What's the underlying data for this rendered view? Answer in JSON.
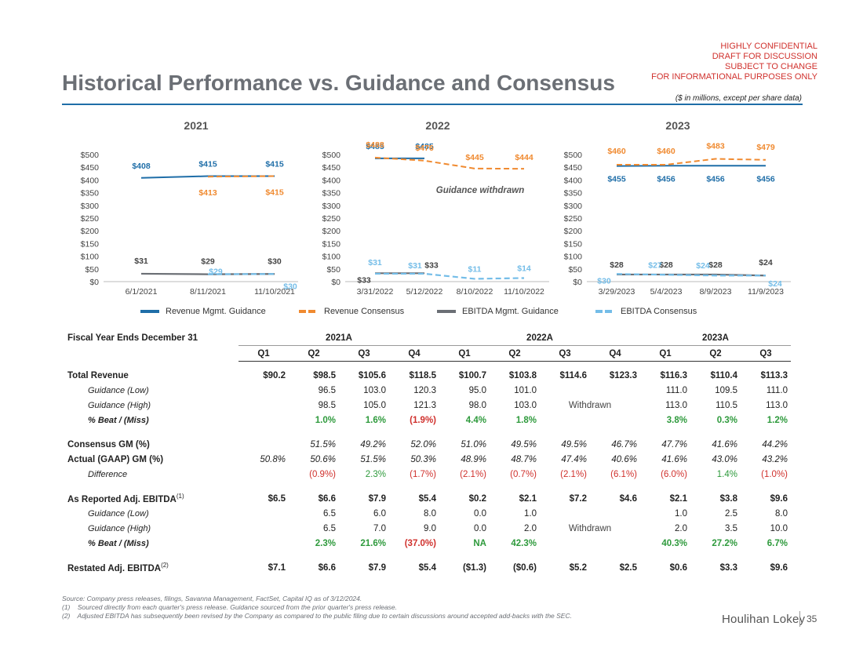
{
  "header": {
    "confidential_lines": [
      "HIGHLY CONFIDENTIAL",
      "DRAFT FOR DISCUSSION",
      "SUBJECT TO CHANGE",
      "FOR INFORMATIONAL PURPOSES ONLY"
    ],
    "title": "Historical Performance vs. Guidance and Consensus",
    "subtitle": "($ in millions, except per share data)"
  },
  "colors": {
    "revenue_guidance": "#1f6ea8",
    "revenue_consensus": "#f08a30",
    "ebitda_guidance": "#6b6f75",
    "ebitda_consensus": "#74bde8"
  },
  "chart_data": [
    {
      "type": "line",
      "title": "2021",
      "categories": [
        "6/1/2021",
        "8/11/2021",
        "11/10/2021"
      ],
      "ylim": [
        0,
        500
      ],
      "yticks": [
        "$0",
        "$50",
        "$100",
        "$150",
        "$200",
        "$250",
        "$300",
        "$350",
        "$400",
        "$450",
        "$500"
      ],
      "series": [
        {
          "name": "Revenue Mgmt. Guidance",
          "values": [
            408,
            415,
            415
          ],
          "labels": [
            "$408",
            "$415",
            "$415"
          ]
        },
        {
          "name": "Revenue Consensus",
          "values": [
            null,
            413,
            415
          ],
          "labels": [
            "",
            "$413",
            "$415"
          ]
        },
        {
          "name": "EBITDA Mgmt. Guidance",
          "values": [
            31,
            29,
            30
          ],
          "labels": [
            "$31",
            "$29",
            "$30"
          ]
        },
        {
          "name": "EBITDA Consensus",
          "values": [
            null,
            29,
            30
          ],
          "labels": [
            "",
            "$29",
            "$30"
          ]
        }
      ]
    },
    {
      "type": "line",
      "title": "2022",
      "categories": [
        "3/31/2022",
        "5/12/2022",
        "8/10/2022",
        "11/10/2022"
      ],
      "ylim": [
        0,
        500
      ],
      "yticks": [
        "$0",
        "$50",
        "$100",
        "$150",
        "$200",
        "$250",
        "$300",
        "$350",
        "$400",
        "$450",
        "$500"
      ],
      "annotation": "Guidance withdrawn",
      "series": [
        {
          "name": "Revenue Mgmt. Guidance",
          "values": [
            485,
            485,
            null,
            null
          ],
          "labels": [
            "$485",
            "$485",
            "",
            ""
          ]
        },
        {
          "name": "Revenue Consensus",
          "values": [
            488,
            476,
            445,
            444
          ],
          "labels": [
            "$488",
            "$476",
            "$445",
            "$444"
          ]
        },
        {
          "name": "EBITDA Mgmt. Guidance",
          "values": [
            33,
            33,
            null,
            null
          ],
          "labels": [
            "$33",
            "$33",
            "",
            ""
          ]
        },
        {
          "name": "EBITDA Consensus",
          "values": [
            31,
            31,
            11,
            14
          ],
          "labels": [
            "$31",
            "$31",
            "$11",
            "$14"
          ]
        }
      ]
    },
    {
      "type": "line",
      "title": "2023",
      "categories": [
        "3/29/2023",
        "5/4/2023",
        "8/9/2023",
        "11/9/2023"
      ],
      "ylim": [
        0,
        500
      ],
      "yticks": [
        "$0",
        "$50",
        "$100",
        "$150",
        "$200",
        "$250",
        "$300",
        "$350",
        "$400",
        "$450",
        "$500"
      ],
      "series": [
        {
          "name": "Revenue Mgmt. Guidance",
          "values": [
            455,
            456,
            456,
            456
          ],
          "labels": [
            "$455",
            "$456",
            "$456",
            "$456"
          ]
        },
        {
          "name": "Revenue Consensus",
          "values": [
            460,
            460,
            483,
            479
          ],
          "labels": [
            "$460",
            "$460",
            "$483",
            "$479"
          ]
        },
        {
          "name": "EBITDA Mgmt. Guidance",
          "values": [
            28,
            28,
            28,
            24
          ],
          "labels": [
            "$28",
            "$28",
            "$28",
            "$24"
          ]
        },
        {
          "name": "EBITDA Consensus",
          "values": [
            30,
            27,
            24,
            24
          ],
          "labels": [
            "$30",
            "$27",
            "$24",
            "$24"
          ]
        }
      ]
    }
  ],
  "legend": [
    "Revenue Mgmt. Guidance",
    "Revenue Consensus",
    "EBITDA Mgmt. Guidance",
    "EBITDA Consensus"
  ],
  "table": {
    "fiscal_label": "Fiscal Year Ends December 31",
    "years": [
      "2021A",
      "2022A",
      "2023A"
    ],
    "quarters": [
      "Q1",
      "Q2",
      "Q3",
      "Q4",
      "Q1",
      "Q2",
      "Q3",
      "Q4",
      "Q1",
      "Q2",
      "Q3"
    ],
    "withdrawn_label": "Withdrawn",
    "revenue": {
      "label": "Total Revenue",
      "values": [
        "$90.2",
        "$98.5",
        "$105.6",
        "$118.5",
        "$100.7",
        "$103.8",
        "$114.6",
        "$123.3",
        "$116.3",
        "$110.4",
        "$113.3"
      ],
      "guidance_low_label": "Guidance (Low)",
      "guidance_low": [
        "",
        "96.5",
        "103.0",
        "120.3",
        "95.0",
        "101.0",
        "",
        "",
        "111.0",
        "109.5",
        "111.0"
      ],
      "guidance_high_label": "Guidance (High)",
      "guidance_high": [
        "",
        "98.5",
        "105.0",
        "121.3",
        "98.0",
        "103.0",
        "",
        "",
        "113.0",
        "110.5",
        "113.0"
      ],
      "beat_label": "% Beat / (Miss)",
      "beat": [
        "",
        "1.0%",
        "1.6%",
        "(1.9%)",
        "4.4%",
        "1.8%",
        "",
        "",
        "3.8%",
        "0.3%",
        "1.2%"
      ]
    },
    "gm": {
      "consensus_label": "Consensus GM (%)",
      "consensus": [
        "",
        "51.5%",
        "49.2%",
        "52.0%",
        "51.0%",
        "49.5%",
        "49.5%",
        "46.7%",
        "47.7%",
        "41.6%",
        "44.2%"
      ],
      "actual_label": "Actual (GAAP) GM (%)",
      "actual": [
        "50.8%",
        "50.6%",
        "51.5%",
        "50.3%",
        "48.9%",
        "48.7%",
        "47.4%",
        "40.6%",
        "41.6%",
        "43.0%",
        "43.2%"
      ],
      "difference_label": "Difference",
      "difference": [
        "",
        "(0.9%)",
        "2.3%",
        "(1.7%)",
        "(2.1%)",
        "(0.7%)",
        "(2.1%)",
        "(6.1%)",
        "(6.0%)",
        "1.4%",
        "(1.0%)"
      ]
    },
    "ebitda": {
      "label": "As Reported Adj. EBITDA",
      "footnote_ref": "(1)",
      "values": [
        "$6.5",
        "$6.6",
        "$7.9",
        "$5.4",
        "$0.2",
        "$2.1",
        "$7.2",
        "$4.6",
        "$2.1",
        "$3.8",
        "$9.6"
      ],
      "guidance_low_label": "Guidance (Low)",
      "guidance_low": [
        "",
        "6.5",
        "6.0",
        "8.0",
        "0.0",
        "1.0",
        "",
        "",
        "1.0",
        "2.5",
        "8.0"
      ],
      "guidance_high_label": "Guidance (High)",
      "guidance_high": [
        "",
        "6.5",
        "7.0",
        "9.0",
        "0.0",
        "2.0",
        "",
        "",
        "2.0",
        "3.5",
        "10.0"
      ],
      "beat_label": "% Beat / (Miss)",
      "beat": [
        "",
        "2.3%",
        "21.6%",
        "(37.0%)",
        "NA",
        "42.3%",
        "",
        "",
        "40.3%",
        "27.2%",
        "6.7%"
      ]
    },
    "restated": {
      "label": "Restated Adj. EBITDA",
      "footnote_ref": "(2)",
      "values": [
        "$7.1",
        "$6.6",
        "$7.9",
        "$5.4",
        "($1.3)",
        "($0.6)",
        "$5.2",
        "$2.5",
        "$0.6",
        "$3.3",
        "$9.6"
      ]
    }
  },
  "footnotes": [
    "Source: Company press releases, filings, Savanna Management, FactSet, Capital IQ as of 3/12/2024.",
    "(1)    Sourced directly from each quarter's press release. Guidance sourced from the prior quarter's press release.",
    "(2)    Adjusted EBITDA has subsequently been revised by the Company as compared to the public filing due to certain discussions around accepted add-backs with the SEC."
  ],
  "brand": "Houlihan Lokey",
  "page_number": "35"
}
